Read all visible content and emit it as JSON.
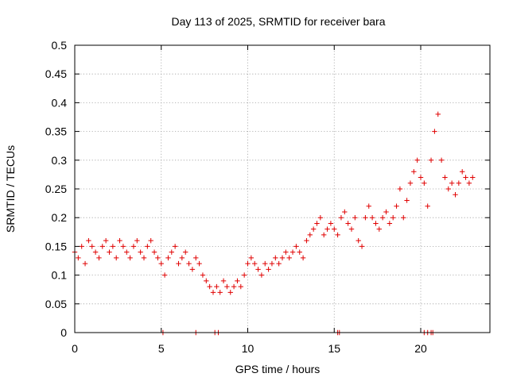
{
  "chart_data": {
    "type": "scatter",
    "title": "Day 113 of 2025, SRMTID for receiver bara",
    "xlabel": "GPS time / hours",
    "ylabel": "SRMTID / TECUs",
    "xlim": [
      0,
      24
    ],
    "ylim": [
      0,
      0.5
    ],
    "x_ticks": [
      0,
      5,
      10,
      15,
      20
    ],
    "y_ticks": [
      0,
      0.05,
      0.1,
      0.15,
      0.2,
      0.25,
      0.3,
      0.35,
      0.4,
      0.45,
      0.5
    ],
    "x_tick_labels": [
      "0",
      "5",
      "10",
      "15",
      "20"
    ],
    "y_tick_labels": [
      "0",
      "0.05",
      "0.1",
      "0.15",
      "0.2",
      "0.25",
      "0.3",
      "0.35",
      "0.4",
      "0.45",
      "0.5"
    ],
    "grid": true,
    "marker": "+",
    "color": "#e00000",
    "series": [
      {
        "name": "SRMTID",
        "x": [
          0.0,
          0.2,
          0.4,
          0.6,
          0.8,
          1.0,
          1.2,
          1.4,
          1.6,
          1.8,
          2.0,
          2.2,
          2.4,
          2.6,
          2.8,
          3.0,
          3.2,
          3.4,
          3.6,
          3.8,
          4.0,
          4.2,
          4.4,
          4.6,
          4.8,
          5.0,
          5.2,
          5.4,
          5.6,
          5.8,
          6.0,
          6.2,
          6.4,
          6.6,
          6.8,
          7.0,
          7.2,
          7.4,
          7.6,
          7.8,
          8.0,
          8.2,
          8.4,
          8.6,
          8.8,
          9.0,
          9.2,
          9.4,
          9.6,
          9.8,
          10.0,
          10.2,
          10.4,
          10.6,
          10.8,
          11.0,
          11.2,
          11.4,
          11.6,
          11.8,
          12.0,
          12.2,
          12.4,
          12.6,
          12.8,
          13.0,
          13.2,
          13.4,
          13.6,
          13.8,
          14.0,
          14.2,
          14.4,
          14.6,
          14.8,
          15.0,
          15.2,
          15.4,
          15.6,
          15.8,
          16.0,
          16.2,
          16.4,
          16.6,
          16.8,
          17.0,
          17.2,
          17.4,
          17.6,
          17.8,
          18.0,
          18.2,
          18.4,
          18.6,
          18.8,
          19.0,
          19.2,
          19.4,
          19.6,
          19.8,
          20.0,
          20.2,
          20.4,
          20.6,
          20.8,
          21.0,
          21.2,
          21.4,
          21.6,
          21.8,
          22.0,
          22.2,
          22.4,
          22.6,
          22.8,
          23.0
        ],
        "y": [
          0.14,
          0.13,
          0.15,
          0.12,
          0.16,
          0.15,
          0.14,
          0.13,
          0.15,
          0.16,
          0.14,
          0.15,
          0.13,
          0.16,
          0.15,
          0.14,
          0.13,
          0.15,
          0.16,
          0.14,
          0.13,
          0.15,
          0.16,
          0.14,
          0.13,
          0.12,
          0.1,
          0.13,
          0.14,
          0.15,
          0.12,
          0.13,
          0.14,
          0.12,
          0.11,
          0.13,
          0.12,
          0.1,
          0.09,
          0.08,
          0.07,
          0.08,
          0.07,
          0.09,
          0.08,
          0.07,
          0.08,
          0.09,
          0.08,
          0.1,
          0.12,
          0.13,
          0.12,
          0.11,
          0.1,
          0.12,
          0.11,
          0.12,
          0.13,
          0.12,
          0.13,
          0.14,
          0.13,
          0.14,
          0.15,
          0.14,
          0.13,
          0.16,
          0.17,
          0.18,
          0.19,
          0.2,
          0.17,
          0.18,
          0.19,
          0.18,
          0.17,
          0.2,
          0.21,
          0.19,
          0.18,
          0.2,
          0.16,
          0.15,
          0.2,
          0.22,
          0.2,
          0.19,
          0.18,
          0.2,
          0.21,
          0.19,
          0.2,
          0.22,
          0.25,
          0.2,
          0.23,
          0.26,
          0.28,
          0.3,
          0.27,
          0.26,
          0.22,
          0.3,
          0.35,
          0.38,
          0.3,
          0.27,
          0.25,
          0.26,
          0.24,
          0.26,
          0.28,
          0.27,
          0.26,
          0.27
        ]
      }
    ],
    "zero_marks_x": [
      5.1,
      7.0,
      8.1,
      8.3,
      15.2,
      15.3,
      20.2,
      20.4,
      20.6,
      20.7
    ]
  }
}
